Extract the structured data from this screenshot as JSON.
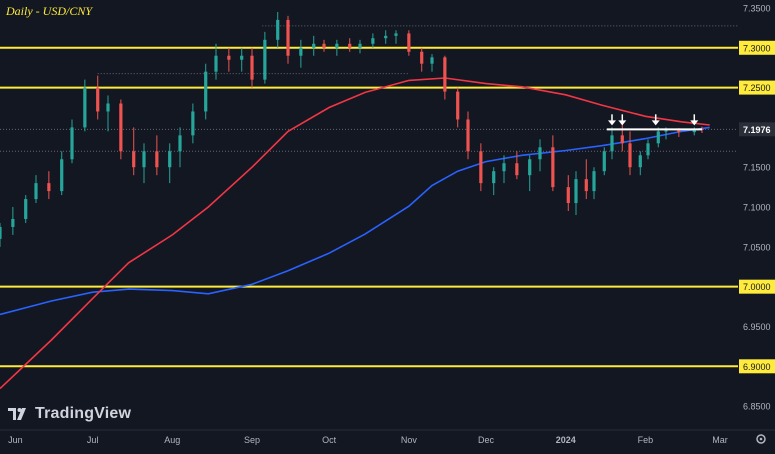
{
  "chart_data": {
    "type": "candlestick",
    "title": "Daily - USD/CNY",
    "ylim": [
      6.82,
      7.36
    ],
    "y_ticks": [
      "7.3500",
      "7.3000",
      "7.2500",
      "7.2000",
      "7.1500",
      "7.1000",
      "7.0500",
      "7.0000",
      "6.9500",
      "6.9000",
      "6.8500"
    ],
    "x_tick_labels": [
      {
        "label": "Jun",
        "date": "2023-06-01",
        "bold": false
      },
      {
        "label": "Jul",
        "date": "2023-07-01",
        "bold": false
      },
      {
        "label": "Aug",
        "date": "2023-08-01",
        "bold": false
      },
      {
        "label": "Sep",
        "date": "2023-09-01",
        "bold": false
      },
      {
        "label": "Oct",
        "date": "2023-10-01",
        "bold": false
      },
      {
        "label": "Nov",
        "date": "2023-11-01",
        "bold": false
      },
      {
        "label": "Dec",
        "date": "2023-12-01",
        "bold": false
      },
      {
        "label": "2024",
        "date": "2024-01-01",
        "bold": true
      },
      {
        "label": "Feb",
        "date": "2024-02-01",
        "bold": false
      },
      {
        "label": "Mar",
        "date": "2024-03-01",
        "bold": false
      }
    ],
    "x_range": [
      "2023-05-26",
      "2024-03-08"
    ],
    "horizontal_levels": [
      {
        "value": 7.3,
        "label": "7.3000",
        "color": "#ffeb3b"
      },
      {
        "value": 7.25,
        "label": "7.2500",
        "color": "#ffeb3b"
      },
      {
        "value": 7.0,
        "label": "7.0000",
        "color": "#ffeb3b"
      },
      {
        "value": 6.9,
        "label": "6.9000",
        "color": "#ffeb3b"
      }
    ],
    "last_price": {
      "value": 7.1976,
      "label": "7.1976"
    },
    "resistance_segment": {
      "value": 7.1976,
      "from": "2024-01-17",
      "to": "2024-02-23",
      "color": "#ffffff"
    },
    "dotted_levels": [
      {
        "value": 7.3275,
        "from": "2023-09-05",
        "to": "2024-03-08"
      },
      {
        "value": 7.2675,
        "from": "2023-07-03",
        "to": "2023-11-01"
      },
      {
        "value": 7.1975,
        "from": "2023-05-26",
        "to": "2024-03-08"
      },
      {
        "value": 7.17,
        "from": "2023-05-26",
        "to": "2024-03-08"
      }
    ],
    "arrows": [
      "2024-01-19",
      "2024-01-23",
      "2024-02-05",
      "2024-02-20"
    ],
    "candle_colors": {
      "up": "#26a69a",
      "down": "#ef5350"
    },
    "series": [
      {
        "type": "line",
        "color": "#2962ff",
        "points": [
          [
            "2023-05-26",
            6.965
          ],
          [
            "2023-06-15",
            6.982
          ],
          [
            "2023-07-01",
            6.993
          ],
          [
            "2023-07-15",
            6.997
          ],
          [
            "2023-08-01",
            6.995
          ],
          [
            "2023-08-15",
            6.991
          ],
          [
            "2023-09-01",
            7.003
          ],
          [
            "2023-09-15",
            7.02
          ],
          [
            "2023-10-01",
            7.042
          ],
          [
            "2023-10-15",
            7.066
          ],
          [
            "2023-11-01",
            7.101
          ],
          [
            "2023-11-10",
            7.127
          ],
          [
            "2023-11-20",
            7.145
          ],
          [
            "2023-12-01",
            7.157
          ],
          [
            "2023-12-15",
            7.165
          ],
          [
            "2024-01-01",
            7.171
          ],
          [
            "2024-01-15",
            7.177
          ],
          [
            "2024-02-01",
            7.186
          ],
          [
            "2024-02-15",
            7.195
          ],
          [
            "2024-02-26",
            7.2
          ]
        ]
      },
      {
        "type": "line",
        "color": "#f23645",
        "points": [
          [
            "2023-05-26",
            6.872
          ],
          [
            "2023-06-15",
            6.933
          ],
          [
            "2023-07-01",
            6.985
          ],
          [
            "2023-07-15",
            7.03
          ],
          [
            "2023-08-01",
            7.065
          ],
          [
            "2023-08-15",
            7.1
          ],
          [
            "2023-09-01",
            7.15
          ],
          [
            "2023-09-15",
            7.195
          ],
          [
            "2023-10-01",
            7.225
          ],
          [
            "2023-10-15",
            7.244
          ],
          [
            "2023-11-01",
            7.259
          ],
          [
            "2023-11-15",
            7.262
          ],
          [
            "2023-12-01",
            7.255
          ],
          [
            "2023-12-15",
            7.251
          ],
          [
            "2024-01-01",
            7.241
          ],
          [
            "2024-01-15",
            7.228
          ],
          [
            "2024-02-01",
            7.214
          ],
          [
            "2024-02-15",
            7.207
          ],
          [
            "2024-02-26",
            7.203
          ]
        ]
      }
    ],
    "candles": [
      [
        "2023-05-26",
        7.06,
        7.08,
        7.05,
        7.075
      ],
      [
        "2023-05-31",
        7.075,
        7.1,
        7.065,
        7.085
      ],
      [
        "2023-06-05",
        7.085,
        7.115,
        7.08,
        7.11
      ],
      [
        "2023-06-09",
        7.11,
        7.14,
        7.105,
        7.13
      ],
      [
        "2023-06-14",
        7.13,
        7.145,
        7.11,
        7.12
      ],
      [
        "2023-06-19",
        7.12,
        7.17,
        7.115,
        7.16
      ],
      [
        "2023-06-23",
        7.16,
        7.21,
        7.155,
        7.2
      ],
      [
        "2023-06-28",
        7.2,
        7.26,
        7.195,
        7.25
      ],
      [
        "2023-07-03",
        7.25,
        7.265,
        7.21,
        7.22
      ],
      [
        "2023-07-07",
        7.22,
        7.24,
        7.195,
        7.23
      ],
      [
        "2023-07-12",
        7.23,
        7.235,
        7.16,
        7.17
      ],
      [
        "2023-07-17",
        7.17,
        7.2,
        7.14,
        7.15
      ],
      [
        "2023-07-21",
        7.15,
        7.18,
        7.13,
        7.17
      ],
      [
        "2023-07-26",
        7.17,
        7.19,
        7.14,
        7.15
      ],
      [
        "2023-07-31",
        7.15,
        7.18,
        7.13,
        7.17
      ],
      [
        "2023-08-04",
        7.17,
        7.2,
        7.15,
        7.19
      ],
      [
        "2023-08-09",
        7.19,
        7.23,
        7.18,
        7.22
      ],
      [
        "2023-08-14",
        7.22,
        7.28,
        7.21,
        7.27
      ],
      [
        "2023-08-18",
        7.27,
        7.305,
        7.26,
        7.29
      ],
      [
        "2023-08-23",
        7.29,
        7.3,
        7.27,
        7.285
      ],
      [
        "2023-08-28",
        7.285,
        7.3,
        7.27,
        7.29
      ],
      [
        "2023-09-01",
        7.29,
        7.3,
        7.25,
        7.26
      ],
      [
        "2023-09-06",
        7.26,
        7.32,
        7.255,
        7.31
      ],
      [
        "2023-09-11",
        7.31,
        7.345,
        7.3,
        7.335
      ],
      [
        "2023-09-15",
        7.335,
        7.34,
        7.28,
        7.29
      ],
      [
        "2023-09-20",
        7.29,
        7.31,
        7.275,
        7.3
      ],
      [
        "2023-09-25",
        7.3,
        7.315,
        7.29,
        7.305
      ],
      [
        "2023-09-29",
        7.305,
        7.31,
        7.295,
        7.3
      ],
      [
        "2023-10-04",
        7.3,
        7.31,
        7.29,
        7.305
      ],
      [
        "2023-10-09",
        7.305,
        7.312,
        7.295,
        7.3
      ],
      [
        "2023-10-13",
        7.3,
        7.31,
        7.293,
        7.305
      ],
      [
        "2023-10-18",
        7.305,
        7.318,
        7.3,
        7.312
      ],
      [
        "2023-10-23",
        7.312,
        7.322,
        7.305,
        7.315
      ],
      [
        "2023-10-27",
        7.315,
        7.322,
        7.305,
        7.318
      ],
      [
        "2023-11-01",
        7.318,
        7.322,
        7.29,
        7.295
      ],
      [
        "2023-11-06",
        7.295,
        7.3,
        7.27,
        7.28
      ],
      [
        "2023-11-10",
        7.28,
        7.292,
        7.27,
        7.288
      ],
      [
        "2023-11-15",
        7.288,
        7.29,
        7.235,
        7.245
      ],
      [
        "2023-11-20",
        7.245,
        7.25,
        7.2,
        7.21
      ],
      [
        "2023-11-24",
        7.21,
        7.22,
        7.16,
        7.17
      ],
      [
        "2023-11-29",
        7.17,
        7.18,
        7.12,
        7.13
      ],
      [
        "2023-12-04",
        7.13,
        7.15,
        7.115,
        7.145
      ],
      [
        "2023-12-08",
        7.145,
        7.165,
        7.13,
        7.155
      ],
      [
        "2023-12-13",
        7.155,
        7.17,
        7.135,
        7.14
      ],
      [
        "2023-12-18",
        7.14,
        7.165,
        7.12,
        7.16
      ],
      [
        "2023-12-22",
        7.16,
        7.185,
        7.145,
        7.175
      ],
      [
        "2023-12-27",
        7.175,
        7.19,
        7.12,
        7.125
      ],
      [
        "2024-01-02",
        7.125,
        7.14,
        7.095,
        7.105
      ],
      [
        "2024-01-05",
        7.105,
        7.145,
        7.09,
        7.135
      ],
      [
        "2024-01-09",
        7.135,
        7.16,
        7.11,
        7.12
      ],
      [
        "2024-01-12",
        7.12,
        7.15,
        7.11,
        7.145
      ],
      [
        "2024-01-16",
        7.145,
        7.175,
        7.14,
        7.17
      ],
      [
        "2024-01-19",
        7.17,
        7.2,
        7.16,
        7.19
      ],
      [
        "2024-01-23",
        7.19,
        7.205,
        7.17,
        7.18
      ],
      [
        "2024-01-26",
        7.18,
        7.195,
        7.14,
        7.15
      ],
      [
        "2024-01-30",
        7.15,
        7.17,
        7.14,
        7.165
      ],
      [
        "2024-02-02",
        7.165,
        7.185,
        7.16,
        7.18
      ],
      [
        "2024-02-06",
        7.18,
        7.2,
        7.175,
        7.195
      ],
      [
        "2024-02-09",
        7.195,
        7.2,
        7.185,
        7.196
      ],
      [
        "2024-02-14",
        7.196,
        7.199,
        7.188,
        7.194
      ],
      [
        "2024-02-20",
        7.194,
        7.2,
        7.19,
        7.198
      ],
      [
        "2024-02-23",
        7.198,
        7.201,
        7.193,
        7.1976
      ]
    ]
  },
  "watermark": {
    "text": "TradingView",
    "logo_icon": "tradingview-logo"
  }
}
